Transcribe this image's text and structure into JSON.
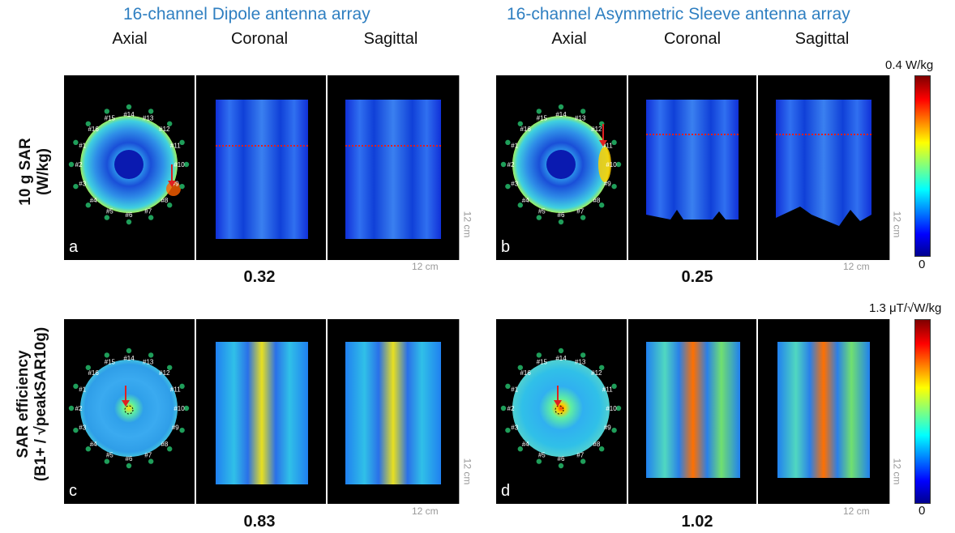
{
  "groups": [
    {
      "title": "16-channel Dipole antenna array"
    },
    {
      "title": "16-channel Asymmetric Sleeve antenna array"
    }
  ],
  "views": [
    "Axial",
    "Coronal",
    "Sagittal",
    "Axial",
    "Coronal",
    "Sagittal"
  ],
  "rows": [
    {
      "label_line1": "10 g SAR",
      "label_line2": "(W/kg)",
      "colorbar_max": "0.4 W/kg",
      "colorbar_min": "0",
      "panels": [
        {
          "letter": "a",
          "value": "0.32"
        },
        {
          "letter": "b",
          "value": "0.25"
        }
      ]
    },
    {
      "label_line1": "SAR efficiency",
      "label_line2": "(B1+ / √peakSAR10g)",
      "colorbar_max": "1.3 μT/√W/kg",
      "colorbar_min": "0",
      "panels": [
        {
          "letter": "c",
          "value": "0.83"
        },
        {
          "letter": "d",
          "value": "1.02"
        }
      ]
    }
  ],
  "scale_label": "12 cm",
  "channels": [
    "#1",
    "#2",
    "#3",
    "#4",
    "#5",
    "#6",
    "#7",
    "#8",
    "#9",
    "#10",
    "#11",
    "#12",
    "#13",
    "#14",
    "#15",
    "#16"
  ],
  "colors": {
    "title_blue": "#2f7fc1",
    "marker_green": "#1f9e5a",
    "arrow_red": "#e02020"
  }
}
